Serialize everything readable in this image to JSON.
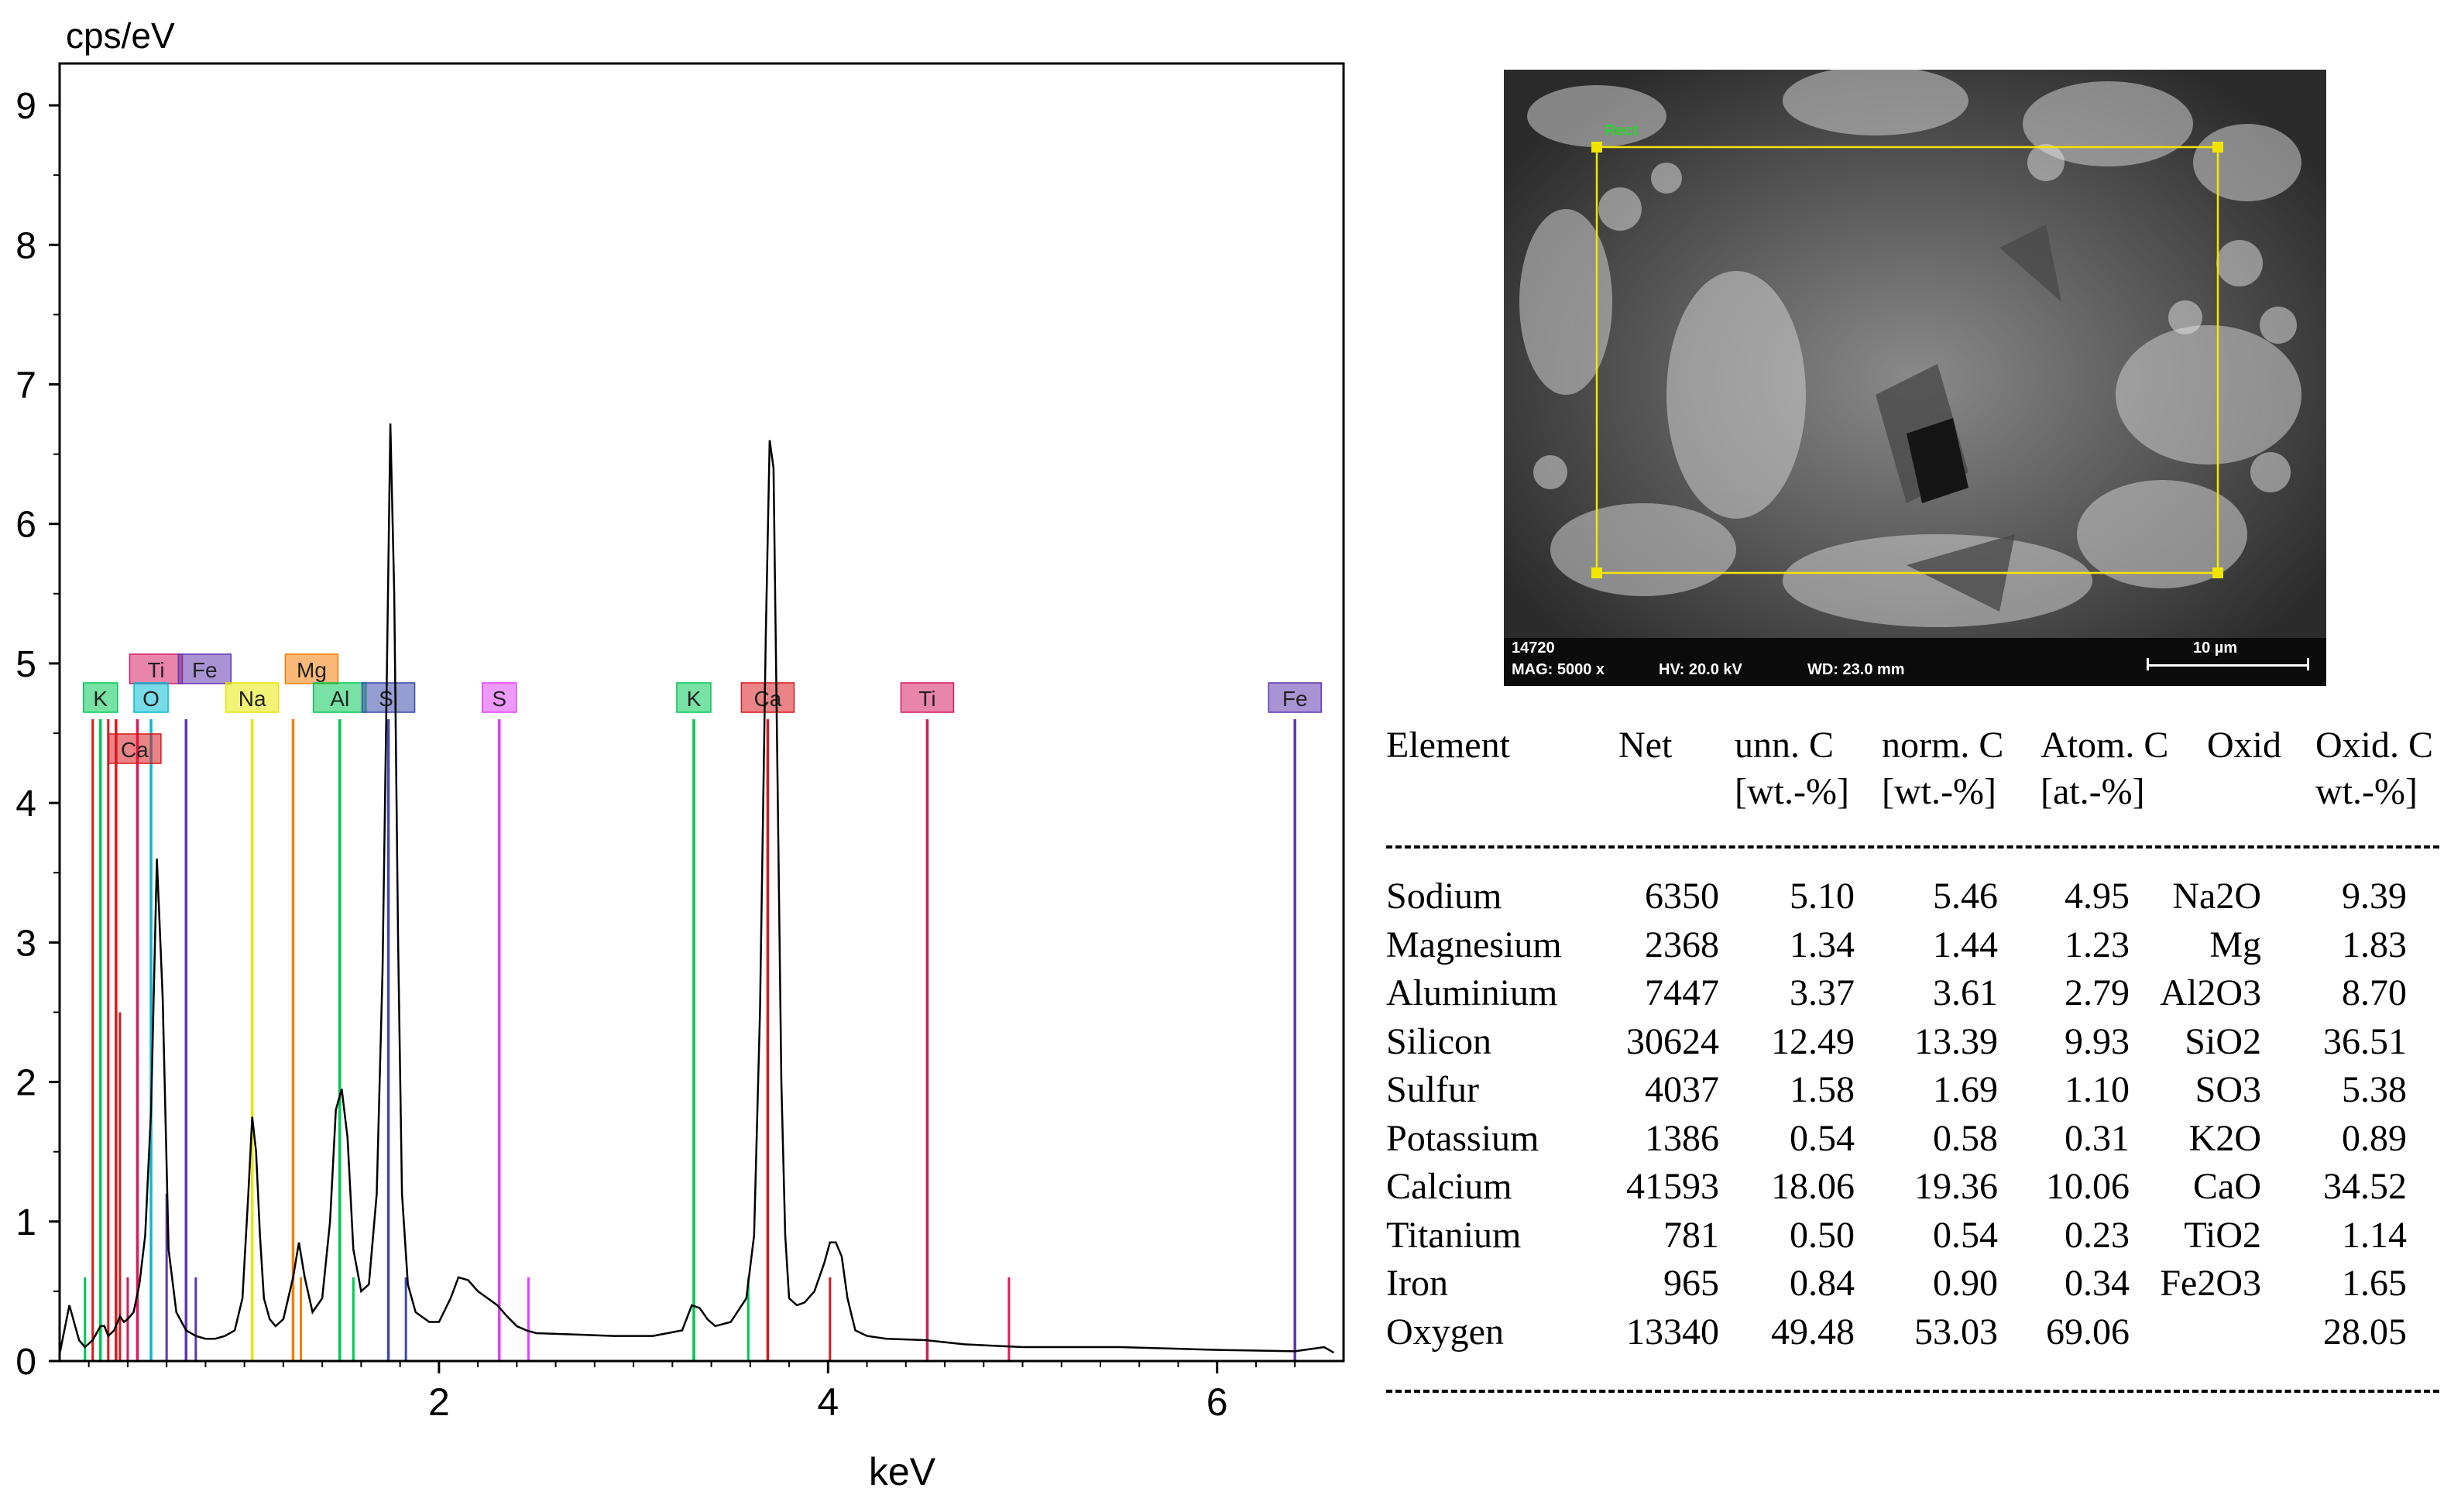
{
  "chart_data": {
    "type": "line",
    "title": "",
    "ylabel": "cps/eV",
    "xlabel": "keV",
    "xlim": [
      0.05,
      6.65
    ],
    "ylim": [
      0,
      9.3
    ],
    "xticks": [
      2,
      4,
      6
    ],
    "yticks": [
      0,
      1,
      2,
      3,
      4,
      5,
      6,
      7,
      8,
      9
    ],
    "grid": false,
    "spectrum": {
      "x": [
        0.05,
        0.1,
        0.15,
        0.18,
        0.22,
        0.26,
        0.28,
        0.3,
        0.33,
        0.36,
        0.38,
        0.4,
        0.43,
        0.46,
        0.49,
        0.52,
        0.55,
        0.58,
        0.61,
        0.65,
        0.7,
        0.75,
        0.8,
        0.85,
        0.9,
        0.95,
        0.99,
        1.02,
        1.04,
        1.06,
        1.08,
        1.1,
        1.13,
        1.16,
        1.2,
        1.25,
        1.28,
        1.31,
        1.35,
        1.4,
        1.44,
        1.47,
        1.5,
        1.53,
        1.56,
        1.6,
        1.64,
        1.68,
        1.71,
        1.73,
        1.75,
        1.77,
        1.79,
        1.81,
        1.84,
        1.88,
        1.95,
        2.0,
        2.06,
        2.1,
        2.15,
        2.2,
        2.25,
        2.3,
        2.35,
        2.4,
        2.45,
        2.5,
        2.7,
        2.9,
        3.1,
        3.25,
        3.3,
        3.34,
        3.38,
        3.42,
        3.5,
        3.58,
        3.62,
        3.65,
        3.68,
        3.7,
        3.72,
        3.74,
        3.76,
        3.78,
        3.8,
        3.84,
        3.88,
        3.93,
        3.98,
        4.01,
        4.04,
        4.07,
        4.1,
        4.14,
        4.2,
        4.3,
        4.5,
        4.7,
        5.0,
        5.5,
        6.0,
        6.4,
        6.55,
        6.6
      ],
      "y": [
        0.05,
        0.4,
        0.15,
        0.1,
        0.15,
        0.25,
        0.25,
        0.18,
        0.22,
        0.32,
        0.28,
        0.3,
        0.35,
        0.55,
        0.9,
        1.8,
        3.6,
        2.6,
        0.8,
        0.35,
        0.22,
        0.18,
        0.16,
        0.16,
        0.18,
        0.22,
        0.45,
        1.2,
        1.75,
        1.5,
        0.9,
        0.45,
        0.3,
        0.25,
        0.3,
        0.6,
        0.85,
        0.6,
        0.35,
        0.45,
        1.0,
        1.8,
        1.95,
        1.6,
        0.8,
        0.5,
        0.55,
        1.2,
        2.8,
        4.7,
        6.72,
        5.5,
        3.0,
        1.2,
        0.55,
        0.35,
        0.28,
        0.28,
        0.45,
        0.6,
        0.58,
        0.5,
        0.45,
        0.4,
        0.32,
        0.25,
        0.22,
        0.2,
        0.19,
        0.18,
        0.18,
        0.22,
        0.4,
        0.38,
        0.3,
        0.25,
        0.28,
        0.45,
        0.9,
        2.5,
        5.2,
        6.6,
        6.4,
        4.2,
        2.0,
        0.9,
        0.45,
        0.4,
        0.42,
        0.5,
        0.7,
        0.85,
        0.85,
        0.75,
        0.45,
        0.22,
        0.18,
        0.16,
        0.15,
        0.12,
        0.1,
        0.1,
        0.08,
        0.07,
        0.1,
        0.06
      ]
    },
    "element_lines": [
      {
        "symbol": "Ca",
        "kev": 0.34,
        "height": 4.6,
        "color": "#d7191c",
        "label_row": "low"
      },
      {
        "symbol": "K",
        "kev": 0.26,
        "height": 4.6,
        "color": "#00c853",
        "label_row": "mid"
      },
      {
        "symbol": "Ti",
        "kev": 0.45,
        "height": 4.6,
        "color": "#d81b60",
        "label_row": "top"
      },
      {
        "symbol": "O",
        "kev": 0.52,
        "height": 4.6,
        "color": "#00bcd4",
        "label_row": "mid"
      },
      {
        "symbol": "Fe",
        "kev": 0.7,
        "height": 4.6,
        "color": "#5e35b1",
        "label_row": "top"
      },
      {
        "symbol": "Na",
        "kev": 1.04,
        "height": 4.6,
        "color": "#e6e600",
        "label_row": "mid"
      },
      {
        "symbol": "Mg",
        "kev": 1.25,
        "height": 4.6,
        "color": "#f57c00",
        "label_row": "top"
      },
      {
        "symbol": "Al",
        "kev": 1.49,
        "height": 4.6,
        "color": "#00c853",
        "label_row": "mid"
      },
      {
        "symbol": "Si",
        "kev": 1.74,
        "height": 4.6,
        "color": "#3949ab",
        "label_row": "mid"
      },
      {
        "symbol": "S",
        "kev": 2.31,
        "height": 4.6,
        "color": "#e040fb",
        "label_row": "mid"
      },
      {
        "symbol": "K",
        "kev": 3.31,
        "height": 4.6,
        "color": "#00c853",
        "label_row": "mid"
      },
      {
        "symbol": "Ca",
        "kev": 3.69,
        "height": 4.6,
        "color": "#d7191c",
        "label_row": "mid"
      },
      {
        "symbol": "Ti",
        "kev": 4.51,
        "height": 4.6,
        "color": "#d81b60",
        "label_row": "mid"
      },
      {
        "symbol": "Fe",
        "kev": 6.4,
        "height": 4.6,
        "color": "#5e35b1",
        "label_row": "mid"
      }
    ],
    "minor_lines": [
      {
        "kev": 0.18,
        "height": 0.6,
        "color": "#00c853"
      },
      {
        "kev": 0.22,
        "height": 4.6,
        "color": "#d7191c"
      },
      {
        "kev": 0.3,
        "height": 4.6,
        "color": "#d7191c"
      },
      {
        "kev": 0.36,
        "height": 2.5,
        "color": "#d7191c"
      },
      {
        "kev": 0.4,
        "height": 0.6,
        "color": "#d81b60"
      },
      {
        "kev": 0.6,
        "height": 1.2,
        "color": "#5e35b1"
      },
      {
        "kev": 0.75,
        "height": 0.6,
        "color": "#5e35b1"
      },
      {
        "kev": 1.29,
        "height": 0.6,
        "color": "#f57c00"
      },
      {
        "kev": 1.56,
        "height": 0.6,
        "color": "#00c853"
      },
      {
        "kev": 1.83,
        "height": 0.6,
        "color": "#3949ab"
      },
      {
        "kev": 2.46,
        "height": 0.6,
        "color": "#e040fb"
      },
      {
        "kev": 3.59,
        "height": 0.6,
        "color": "#00c853"
      },
      {
        "kev": 4.01,
        "height": 0.6,
        "color": "#d7191c"
      },
      {
        "kev": 4.93,
        "height": 0.6,
        "color": "#d81b60"
      }
    ]
  },
  "sem_image": {
    "sample_id": "14720",
    "magnification": "MAG: 5000 x",
    "voltage": "HV: 20.0 kV",
    "working_distance": "WD: 23.0 mm",
    "scale_bar": "10 µm",
    "selection_label": "Rect"
  },
  "table": {
    "headers": [
      {
        "line1": "Element",
        "line2": ""
      },
      {
        "line1": "Net",
        "line2": ""
      },
      {
        "line1": "unn. C",
        "line2": "[wt.-%]"
      },
      {
        "line1": "norm. C",
        "line2": "[wt.-%]"
      },
      {
        "line1": "Atom. C",
        "line2": "[at.-%]"
      },
      {
        "line1": "Oxid",
        "line2": ""
      },
      {
        "line1": "Oxid. C",
        "line2": "wt.-%]"
      }
    ],
    "rows": [
      {
        "element": "Sodium",
        "net": "6350",
        "unn": "5.10",
        "norm": "5.46",
        "atom": "4.95",
        "oxid": "Na2O",
        "oxidc": "9.39"
      },
      {
        "element": "Magnesium",
        "net": "2368",
        "unn": "1.34",
        "norm": "1.44",
        "atom": "1.23",
        "oxid": "Mg",
        "oxidc": "1.83"
      },
      {
        "element": "Aluminium",
        "net": "7447",
        "unn": "3.37",
        "norm": "3.61",
        "atom": "2.79",
        "oxid": "Al2O3",
        "oxidc": "8.70"
      },
      {
        "element": "Silicon",
        "net": "30624",
        "unn": "12.49",
        "norm": "13.39",
        "atom": "9.93",
        "oxid": "SiO2",
        "oxidc": "36.51"
      },
      {
        "element": "Sulfur",
        "net": "4037",
        "unn": "1.58",
        "norm": "1.69",
        "atom": "1.10",
        "oxid": "SO3",
        "oxidc": "5.38"
      },
      {
        "element": "Potassium",
        "net": "1386",
        "unn": "0.54",
        "norm": "0.58",
        "atom": "0.31",
        "oxid": "K2O",
        "oxidc": "0.89"
      },
      {
        "element": "Calcium",
        "net": "41593",
        "unn": "18.06",
        "norm": "19.36",
        "atom": "10.06",
        "oxid": "CaO",
        "oxidc": "34.52"
      },
      {
        "element": "Titanium",
        "net": "781",
        "unn": "0.50",
        "norm": "0.54",
        "atom": "0.23",
        "oxid": "TiO2",
        "oxidc": "1.14"
      },
      {
        "element": "Iron",
        "net": "965",
        "unn": "0.84",
        "norm": "0.90",
        "atom": "0.34",
        "oxid": "Fe2O3",
        "oxidc": "1.65"
      },
      {
        "element": "Oxygen",
        "net": "13340",
        "unn": "49.48",
        "norm": "53.03",
        "atom": "69.06",
        "oxid": "",
        "oxidc": "28.05"
      }
    ]
  }
}
